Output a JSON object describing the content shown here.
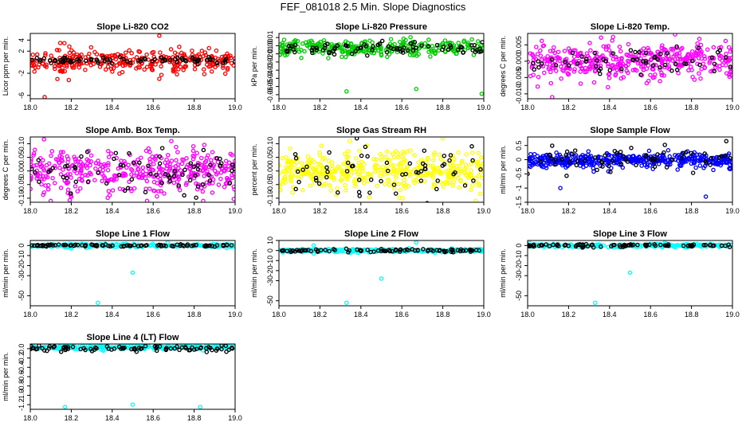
{
  "figure_title": "FEF_081018  2.5 Min. Slope Diagnostics",
  "x_range": [
    18.0,
    19.0
  ],
  "x_ticks": [
    "18.0",
    "18.2",
    "18.4",
    "18.6",
    "18.8",
    "19.0"
  ],
  "chart_data": [
    {
      "type": "scatter",
      "title": "Slope Li-820 CO2",
      "ylabel": "Licor ppm per min.",
      "ylim": [
        -6.6,
        5.2
      ],
      "yticks": [
        -6,
        -2,
        2,
        4
      ],
      "ytick_labels": [
        "-6",
        "-2",
        "2",
        "4"
      ],
      "series": [
        {
          "name": "main",
          "color": "#ff0000",
          "center": 0.3,
          "spread": 1.0,
          "n": 320,
          "outliers": [
            [
              18.07,
              -6.3
            ],
            [
              18.63,
              4.8
            ],
            [
              18.63,
              -3.0
            ],
            [
              18.64,
              -2.3
            ]
          ]
        },
        {
          "name": "black",
          "color": "#000000",
          "center": 0.3,
          "spread": 0.25,
          "n": 80,
          "outliers": []
        }
      ]
    },
    {
      "type": "scatter",
      "title": "Slope Li-820 Pressure",
      "ylabel": "kPa per min.",
      "ylim": [
        -0.065,
        0.015
      ],
      "yticks": [
        -0.06,
        -0.05,
        -0.04,
        -0.03,
        -0.02,
        -0.01,
        0.0,
        0.01
      ],
      "ytick_labels": [
        "-0.06",
        "-0.05",
        "-0.04",
        "-0.03",
        "-0.02",
        "-0.01",
        "0.00",
        "0.01"
      ],
      "series": [
        {
          "name": "main",
          "color": "#00cc00",
          "center": -0.003,
          "spread": 0.005,
          "n": 300,
          "outliers": [
            [
              18.33,
              -0.056
            ],
            [
              18.67,
              -0.053
            ],
            [
              18.99,
              -0.059
            ]
          ]
        },
        {
          "name": "black",
          "color": "#000000",
          "center": -0.003,
          "spread": 0.004,
          "n": 80,
          "outliers": []
        }
      ]
    },
    {
      "type": "scatter",
      "title": "Slope Li-820 Temp.",
      "ylabel": "degrees C per min.",
      "ylim": [
        -0.0115,
        0.0085
      ],
      "yticks": [
        -0.01,
        -0.005,
        0.0,
        0.005
      ],
      "ytick_labels": [
        "-0.010",
        "-0.005",
        "0.000",
        "0.005"
      ],
      "series": [
        {
          "name": "main",
          "color": "#ff00ff",
          "center": 0.0,
          "spread": 0.0026,
          "n": 420,
          "outliers": [
            [
              18.72,
              0.0082
            ],
            [
              18.12,
              -0.011
            ]
          ]
        },
        {
          "name": "black",
          "color": "#000000",
          "center": 0.0,
          "spread": 0.0022,
          "n": 60,
          "outliers": []
        }
      ]
    },
    {
      "type": "scatter",
      "title": "Slope Amb. Box Temp.",
      "ylabel": "degrees C per min.",
      "ylim": [
        -0.115,
        0.125
      ],
      "yticks": [
        -0.1,
        -0.05,
        0.0,
        0.05,
        0.1
      ],
      "ytick_labels": [
        "-0.10",
        "-0.05",
        "0.00",
        "0.05",
        "0.10"
      ],
      "series": [
        {
          "name": "main",
          "color": "#ff00ff",
          "center": 0.0,
          "spread": 0.042,
          "n": 420,
          "outliers": [
            [
              18.1,
              -0.11
            ],
            [
              18.57,
              -0.11
            ]
          ]
        },
        {
          "name": "black",
          "color": "#000000",
          "center": 0.0,
          "spread": 0.04,
          "n": 70,
          "outliers": []
        }
      ]
    },
    {
      "type": "scatter",
      "title": "Slope Gas Stream RH",
      "ylabel": "percent per min.",
      "ylim": [
        -0.115,
        0.125
      ],
      "yticks": [
        -0.1,
        -0.05,
        0.0,
        0.05,
        0.1
      ],
      "ytick_labels": [
        "-0.10",
        "-0.05",
        "0.00",
        "0.05",
        "0.10"
      ],
      "series": [
        {
          "name": "main",
          "color": "#ffff00",
          "center": 0.0,
          "spread": 0.038,
          "n": 420,
          "outliers": [
            [
              18.8,
              0.12
            ],
            [
              18.96,
              -0.11
            ]
          ]
        },
        {
          "name": "black",
          "color": "#000000",
          "center": 0.0,
          "spread": 0.05,
          "n": 60,
          "outliers": [
            [
              18.38,
              0.12
            ]
          ]
        }
      ]
    },
    {
      "type": "scatter",
      "title": "Slope Sample Flow",
      "ylabel": "ml/min per min.",
      "ylim": [
        -1.5,
        0.8
      ],
      "yticks": [
        -1.5,
        -1.0,
        -0.5,
        0.0,
        0.5
      ],
      "ytick_labels": [
        "-1.5",
        "-1",
        "-0.5",
        "0",
        "0.5"
      ],
      "series": [
        {
          "name": "main",
          "color": "#0000ff",
          "center": -0.02,
          "spread": 0.12,
          "n": 420,
          "outliers": [
            [
              18.16,
              -1.0
            ],
            [
              18.87,
              -1.3
            ]
          ]
        },
        {
          "name": "black",
          "color": "#000000",
          "center": 0.0,
          "spread": 0.2,
          "n": 60,
          "outliers": [
            [
              18.97,
              0.65
            ],
            [
              18.67,
              0.52
            ],
            [
              18.0,
              -0.5
            ]
          ]
        }
      ]
    },
    {
      "type": "scatter",
      "title": "Slope Line 1 Flow",
      "ylabel": "ml/min per min.",
      "ylim": [
        -60,
        5
      ],
      "yticks": [
        -50,
        -30,
        -20,
        -10,
        0
      ],
      "ytick_labels": [
        "-50",
        "-30",
        "-20",
        "-10",
        "0"
      ],
      "series": [
        {
          "name": "main",
          "color": "#00ffff",
          "center": 0.0,
          "spread": 0.8,
          "n": 260,
          "outliers": [
            [
              18.33,
              -57
            ],
            [
              18.5,
              -27
            ],
            [
              18.67,
              3
            ],
            [
              18.17,
              -2
            ],
            [
              18.2,
              -3
            ]
          ]
        },
        {
          "name": "black",
          "color": "#000000",
          "center": 0.0,
          "spread": 0.6,
          "n": 90,
          "outliers": []
        }
      ]
    },
    {
      "type": "scatter",
      "title": "Slope Line 2 Flow",
      "ylabel": "ml/min per min.",
      "ylim": [
        -55,
        10
      ],
      "yticks": [
        -50,
        -30,
        -20,
        -10,
        0,
        10
      ],
      "ytick_labels": [
        "-50",
        "-30",
        "-20",
        "-10",
        "0",
        "10"
      ],
      "series": [
        {
          "name": "main",
          "color": "#00ffff",
          "center": 0.0,
          "spread": 0.8,
          "n": 260,
          "outliers": [
            [
              18.33,
              -52
            ],
            [
              18.5,
              -28
            ],
            [
              18.67,
              8
            ],
            [
              18.17,
              5
            ],
            [
              18.17,
              -3
            ]
          ]
        },
        {
          "name": "black",
          "color": "#000000",
          "center": 0.0,
          "spread": 0.7,
          "n": 90,
          "outliers": []
        }
      ]
    },
    {
      "type": "scatter",
      "title": "Slope Line 3 Flow",
      "ylabel": "ml/min per min.",
      "ylim": [
        -60,
        5
      ],
      "yticks": [
        -50,
        -30,
        -20,
        -10,
        0
      ],
      "ytick_labels": [
        "-50",
        "-30",
        "-20",
        "-10",
        "0"
      ],
      "series": [
        {
          "name": "main",
          "color": "#00ffff",
          "center": 0.0,
          "spread": 0.8,
          "n": 260,
          "outliers": [
            [
              18.33,
              -57
            ],
            [
              18.5,
              -27
            ],
            [
              18.67,
              3
            ],
            [
              18.17,
              -2
            ]
          ]
        },
        {
          "name": "black",
          "color": "#000000",
          "center": 0.0,
          "spread": 0.7,
          "n": 90,
          "outliers": []
        }
      ]
    },
    {
      "type": "scatter",
      "title": "Slope Line 4 (LT) Flow",
      "ylabel": "ml/min per min.",
      "ylim": [
        -1.3,
        0.1
      ],
      "yticks": [
        -1.2,
        -1.0,
        -0.8,
        -0.6,
        -0.4,
        -0.2,
        0.0
      ],
      "ytick_labels": [
        "-1.2",
        "-1.0",
        "-0.8",
        "-0.6",
        "-0.4",
        "-0.2",
        "0.0"
      ],
      "series": [
        {
          "name": "main",
          "color": "#00ffff",
          "center": 0.03,
          "spread": 0.025,
          "n": 260,
          "outliers": [
            [
              18.17,
              -1.25
            ],
            [
              18.5,
              -1.2
            ],
            [
              18.83,
              -1.25
            ]
          ]
        },
        {
          "name": "black",
          "color": "#000000",
          "center": 0.0,
          "spread": 0.03,
          "n": 90,
          "outliers": []
        }
      ]
    }
  ]
}
